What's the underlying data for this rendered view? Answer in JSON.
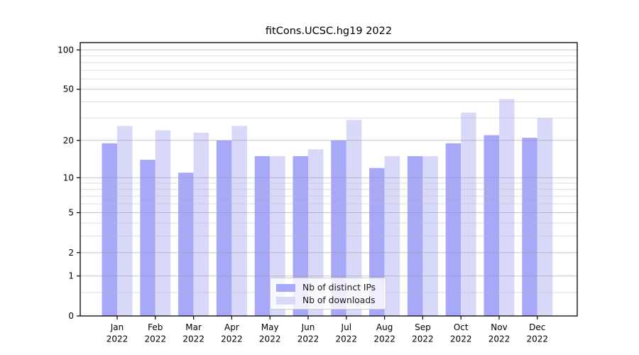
{
  "figure": {
    "background": "#ffffff"
  },
  "chart_data": {
    "type": "bar",
    "title": "fitCons.UCSC.hg19 2022",
    "categories": [
      "Jan 2022",
      "Feb 2022",
      "Mar 2022",
      "Apr 2022",
      "May 2022",
      "Jun 2022",
      "Jul 2022",
      "Aug 2022",
      "Sep 2022",
      "Oct 2022",
      "Nov 2022",
      "Dec 2022"
    ],
    "series": [
      {
        "name": "Nb of distinct IPs",
        "color": "#a8a8f8",
        "values": [
          19,
          14,
          11,
          20,
          15,
          15,
          20,
          12,
          15,
          19,
          22,
          21
        ]
      },
      {
        "name": "Nb of downloads",
        "color": "#d8d8f8",
        "values": [
          26,
          24,
          23,
          26,
          15,
          17,
          29,
          15,
          15,
          33,
          42,
          30
        ]
      }
    ],
    "yscale": "log1p",
    "ylim": [
      0,
      113.6
    ],
    "yticks": [
      0,
      1,
      2,
      5,
      10,
      20,
      50,
      100
    ],
    "yticks_minor": [
      0.5,
      3,
      4,
      6,
      7,
      8,
      9,
      30,
      40,
      60,
      70,
      80,
      90
    ],
    "grid": {
      "major": true,
      "minor": true,
      "drawn_above_bars": true
    },
    "legend_position": "lower center",
    "axis_color": "#000000",
    "grid_major_color": "#999999",
    "grid_minor_color": "#bbbbbb",
    "tick_label_color": "#000000"
  }
}
